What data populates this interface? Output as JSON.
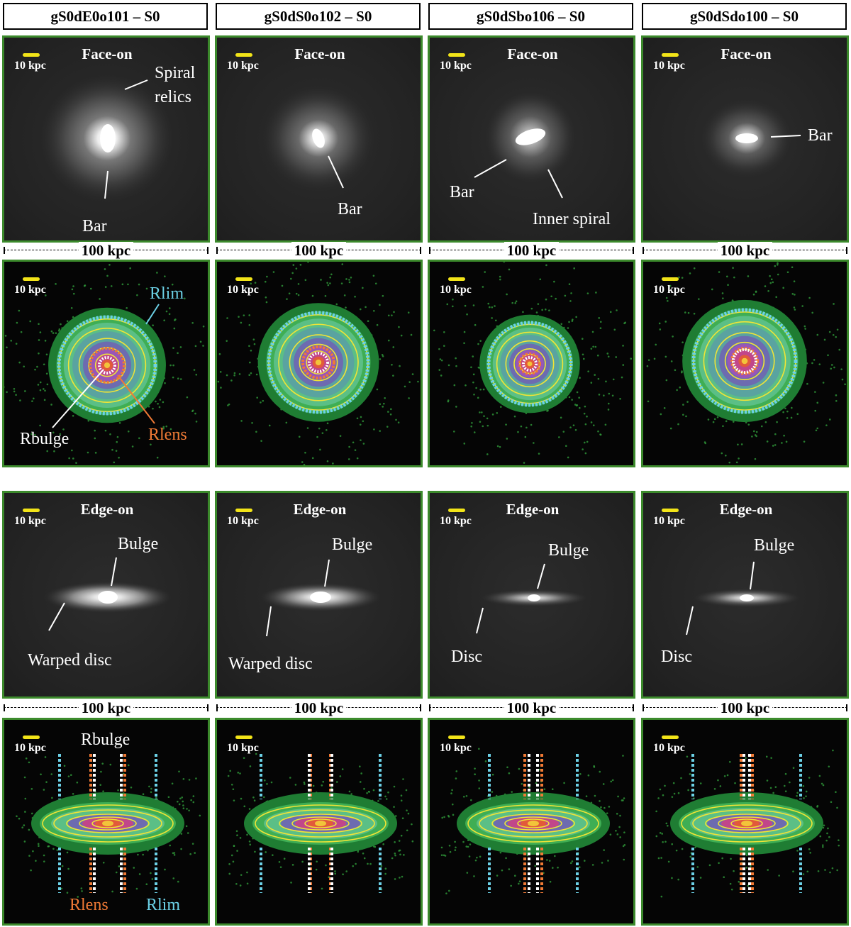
{
  "columns": [
    {
      "header": "gS0dE0o101 – S0"
    },
    {
      "header": "gS0dS0o102 – S0"
    },
    {
      "header": "gS0dSbo106 – S0"
    },
    {
      "header": "gS0dSdo100 – S0"
    }
  ],
  "view_labels": {
    "face_on": "Face-on",
    "edge_on": "Edge-on"
  },
  "scalebar_label": "10 kpc",
  "panel_width_label": "100 kpc",
  "annotations": {
    "spiral_relics": "Spiral",
    "spiral_relics_2": "relics",
    "bar": "Bar",
    "inner_spiral": "Inner spiral",
    "rlim": "Rlim",
    "rbulge": "Rbulge",
    "rlens": "Rlens",
    "bulge": "Bulge",
    "warped_disc": "Warped disc",
    "disc": "Disc"
  },
  "colors": {
    "panel_border": "#3c8a2c",
    "scalebar": "#f2e418",
    "rlim": "#6cd1e6",
    "rlens": "#f07a35",
    "rbulge": "#ffffff",
    "contour": "#f0e436"
  }
}
